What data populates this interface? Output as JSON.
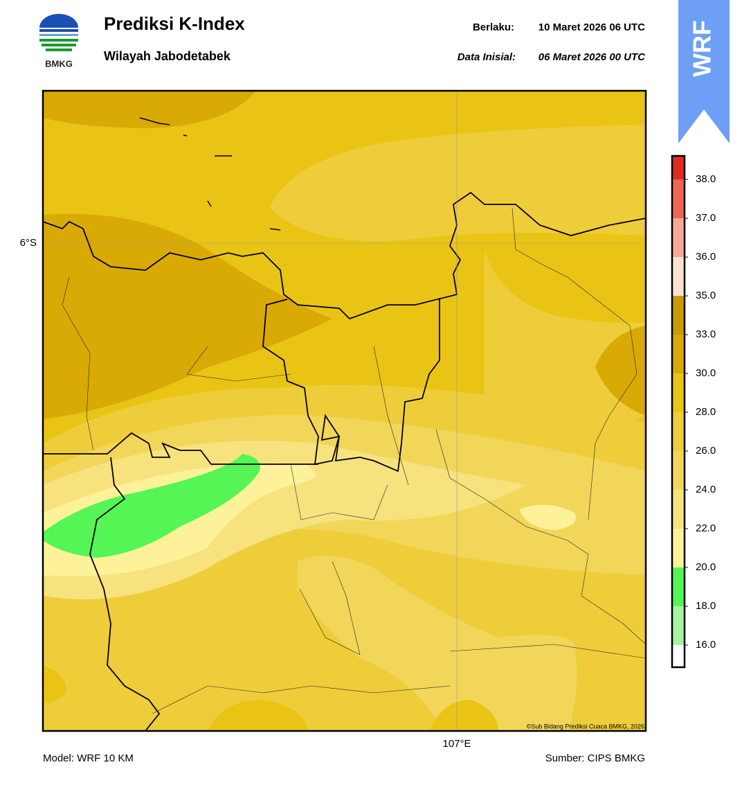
{
  "header": {
    "logo_text": "BMKG",
    "title": "Prediksi K-Index",
    "subtitle": "Wilayah Jabodetabek",
    "valid_label": "Berlaku:",
    "valid_time": "10 Maret 2026 06 UTC",
    "init_label": "Data Inisial:",
    "init_time": "06 Maret 2026 00 UTC",
    "badge": "WRF"
  },
  "map": {
    "lat_label": "6°S",
    "lon_label": "107°E",
    "credit": "©Sub Bidang Prediksi Cuaca BMKG, 2026"
  },
  "colorbar": {
    "ticks": [
      {
        "value": 16,
        "label": "16.0"
      },
      {
        "value": 18,
        "label": "18.0"
      },
      {
        "value": 20,
        "label": "20.0"
      },
      {
        "value": 22,
        "label": "22.0"
      },
      {
        "value": 24,
        "label": "24.0"
      },
      {
        "value": 26,
        "label": "26.0"
      },
      {
        "value": 28,
        "label": "28.0"
      },
      {
        "value": 30,
        "label": "30.0"
      },
      {
        "value": 33,
        "label": "33.0"
      },
      {
        "value": 35,
        "label": "35.0"
      },
      {
        "value": 36,
        "label": "36.0"
      },
      {
        "value": 37,
        "label": "37.0"
      },
      {
        "value": 38,
        "label": "38.0"
      }
    ],
    "colors": [
      "#ffffff",
      "#a6f5a0",
      "#55f555",
      "#fdf29a",
      "#f7e27e",
      "#f2d65a",
      "#efcd3a",
      "#e9c415",
      "#d9aa06",
      "#c99b00",
      "#fde2d2",
      "#f8a896",
      "#f06452",
      "#e22a1e"
    ]
  },
  "footer": {
    "model": "Model: WRF 10 KM",
    "source": "Sumber: CIPS BMKG"
  }
}
